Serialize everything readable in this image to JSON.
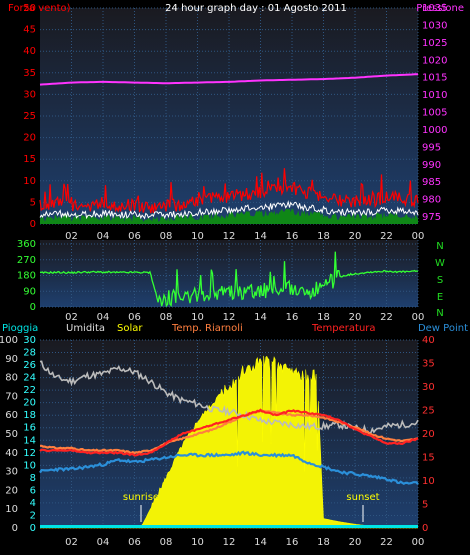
{
  "colors": {
    "background": "#000000",
    "plot_gradient_top": "#1a1a20",
    "plot_gradient_bottom": "#1e3f6e",
    "grid": "#2e5580",
    "wind": "#ff0000",
    "wind_avg": "#ffffff",
    "wind_area": "#0d8f0d",
    "pressure": "#ff33ff",
    "direction": "#33ff33",
    "direction_letters": "#22dd22",
    "rain": "#00e5e5",
    "humidity": "#bbbbbb",
    "solar": "#ffff00",
    "solar_fill": "#f3f305",
    "temp_riarnoli": "#ff7f3f",
    "temperature": "#ff2222",
    "dewpoint": "#2b8fd9",
    "right_axis_red": "#ff3030",
    "left_axis_cyan": "#33ffff",
    "left_axis_white": "#dddddd"
  },
  "header": {
    "title": "24 hour graph day : 01 Agosto 2011",
    "wind_label": "Forza vento)",
    "pressure_label": "Pressione"
  },
  "direction_letters": [
    "N",
    "W",
    "S",
    "E",
    "N"
  ],
  "bottom_legend": {
    "rain": "Pioggia",
    "humidity": "Umidita",
    "solar": "Solar",
    "temp_riarnoli": "Temp. Riarnoli",
    "temperature": "Temperatura",
    "dewpoint": "Dew Point"
  },
  "annotations": {
    "sunrise": "sunrise",
    "sunset": "sunset"
  },
  "chart_data": [
    {
      "type": "line",
      "x_ticks": [
        "02",
        "04",
        "06",
        "08",
        "10",
        "12",
        "14",
        "16",
        "18",
        "20",
        "22",
        "00"
      ],
      "y_left_ticks": [
        "0",
        "5",
        "10",
        "15",
        "20",
        "25",
        "30",
        "35",
        "40",
        "45",
        "50"
      ],
      "y_right_ticks": [
        "975",
        "980",
        "985",
        "990",
        "995",
        "1000",
        "1005",
        "1010",
        "1015",
        "1020",
        "1025",
        "1030",
        "1035"
      ],
      "ylim_left": [
        0,
        50
      ],
      "ylim_right": [
        973,
        1035
      ],
      "series": [
        {
          "name": "Forza vento)",
          "axis": "left",
          "hours": [
            0,
            1,
            2,
            3,
            4,
            5,
            6,
            7,
            8,
            9,
            10,
            11,
            12,
            13,
            14,
            15,
            16,
            17,
            18,
            19,
            20,
            21,
            22,
            23,
            24
          ],
          "values": [
            4,
            4.5,
            4,
            4,
            4.5,
            4,
            4,
            3.5,
            4,
            4,
            5,
            5.5,
            6,
            6.5,
            7,
            7.5,
            8,
            7,
            6,
            5,
            5,
            5,
            6,
            5.5,
            5
          ]
        },
        {
          "name": "Pressione",
          "axis": "right",
          "hours": [
            0,
            2,
            4,
            6,
            8,
            10,
            12,
            14,
            16,
            18,
            20,
            22,
            24
          ],
          "values": [
            1013,
            1013.6,
            1013.8,
            1013.6,
            1013.4,
            1013.6,
            1013.8,
            1014.2,
            1014.4,
            1014.6,
            1015,
            1015.6,
            1016
          ]
        }
      ]
    },
    {
      "type": "line",
      "x_ticks": [
        "02",
        "04",
        "06",
        "08",
        "10",
        "12",
        "14",
        "16",
        "18",
        "20",
        "22",
        "00"
      ],
      "y_ticks": [
        "0",
        "90",
        "180",
        "270",
        "360"
      ],
      "ylim": [
        0,
        360
      ],
      "series": [
        {
          "name": "direction",
          "hours": [
            0,
            1,
            2,
            3,
            4,
            5,
            6,
            7,
            7.5,
            8,
            9,
            10,
            11,
            12,
            13,
            14,
            15,
            16,
            17,
            18,
            19,
            20,
            21,
            22,
            23,
            24
          ],
          "values": [
            195,
            198,
            196,
            200,
            199,
            197,
            198,
            197,
            30,
            50,
            60,
            70,
            75,
            85,
            80,
            95,
            90,
            110,
            80,
            115,
            175,
            190,
            200,
            205,
            200,
            205
          ]
        }
      ]
    },
    {
      "type": "line",
      "x_ticks": [
        "02",
        "04",
        "06",
        "08",
        "10",
        "12",
        "14",
        "16",
        "18",
        "20",
        "22",
        "00"
      ],
      "y_left_outer_ticks": [
        "0",
        "10",
        "20",
        "30",
        "40",
        "50",
        "60",
        "70",
        "80",
        "90",
        "100"
      ],
      "y_left_inner_ticks": [
        "0",
        "2",
        "4",
        "6",
        "8",
        "10",
        "12",
        "14",
        "16",
        "18",
        "20",
        "22",
        "24",
        "26",
        "28",
        "30"
      ],
      "y_right_ticks": [
        "0",
        "5",
        "10",
        "15",
        "20",
        "25",
        "30",
        "35",
        "40"
      ],
      "series": [
        {
          "name": "Umidita",
          "axis": "left_outer",
          "ylim": [
            0,
            100
          ],
          "hours": [
            0,
            1,
            2,
            3,
            4,
            5,
            6,
            7,
            8,
            9,
            10,
            11,
            12,
            13,
            14,
            15,
            16,
            17,
            18,
            19,
            20,
            21,
            22,
            23,
            24
          ],
          "values": [
            88,
            80,
            78,
            81,
            82,
            85,
            83,
            78,
            72,
            68,
            66,
            63,
            62,
            60,
            57,
            56,
            55,
            54,
            54,
            55,
            53,
            52,
            54,
            55,
            56
          ]
        },
        {
          "name": "Solar",
          "axis": "left_inner",
          "ylim": [
            0,
            30
          ],
          "hours": [
            0,
            6,
            6.5,
            7,
            8,
            9,
            10,
            11,
            12,
            13,
            14,
            15,
            16,
            17,
            17.6,
            18,
            19,
            20,
            21,
            22,
            24
          ],
          "values": [
            0,
            0,
            0.5,
            3,
            8,
            13,
            17,
            20,
            23,
            25,
            26.5,
            26,
            25,
            24,
            24,
            1.5,
            1,
            0.6,
            0.3,
            0,
            0
          ]
        },
        {
          "name": "Temp. Riarnoli",
          "axis": "right",
          "ylim": [
            0,
            40
          ],
          "hours": [
            0,
            1,
            2,
            3,
            4,
            5,
            6,
            7,
            8,
            9,
            10,
            11,
            12,
            13,
            14,
            15,
            16,
            17,
            18,
            19,
            20,
            21,
            22,
            23,
            24
          ],
          "values": [
            17.5,
            17,
            17,
            16.5,
            16.5,
            16.5,
            16,
            16.5,
            18,
            19,
            20,
            21,
            22.5,
            24,
            25,
            24.5,
            24,
            24,
            23.5,
            22.5,
            21.5,
            20,
            19,
            18.5,
            19
          ]
        },
        {
          "name": "Temperatura",
          "axis": "right",
          "ylim": [
            0,
            40
          ],
          "hours": [
            0,
            1,
            2,
            3,
            4,
            5,
            6,
            7,
            8,
            9,
            10,
            11,
            12,
            13,
            14,
            15,
            16,
            17,
            18,
            19,
            20,
            21,
            22,
            23,
            24
          ],
          "values": [
            16.5,
            16.5,
            16.5,
            16,
            16,
            16,
            15.5,
            16,
            18,
            20,
            21,
            22,
            23,
            24,
            25,
            24,
            25,
            24.5,
            24,
            23,
            21,
            19.5,
            18,
            18,
            19
          ]
        },
        {
          "name": "Dew Point",
          "axis": "right",
          "ylim": [
            0,
            40
          ],
          "hours": [
            0,
            1,
            2,
            3,
            4,
            5,
            6,
            7,
            8,
            9,
            10,
            11,
            12,
            13,
            14,
            15,
            16,
            17,
            18,
            19,
            20,
            21,
            22,
            23,
            24
          ],
          "values": [
            12,
            12.5,
            12.5,
            13,
            13.5,
            14.5,
            14,
            14.5,
            15,
            15.5,
            15.5,
            15.5,
            15.5,
            16,
            15.5,
            15.5,
            15.5,
            14,
            13,
            12,
            11.5,
            11,
            10.5,
            9.5,
            9.5
          ]
        },
        {
          "name": "Pioggia",
          "axis": "left_inner",
          "ylim": [
            0,
            30
          ],
          "hours": [
            0,
            24
          ],
          "values": [
            0,
            0
          ]
        }
      ]
    }
  ]
}
